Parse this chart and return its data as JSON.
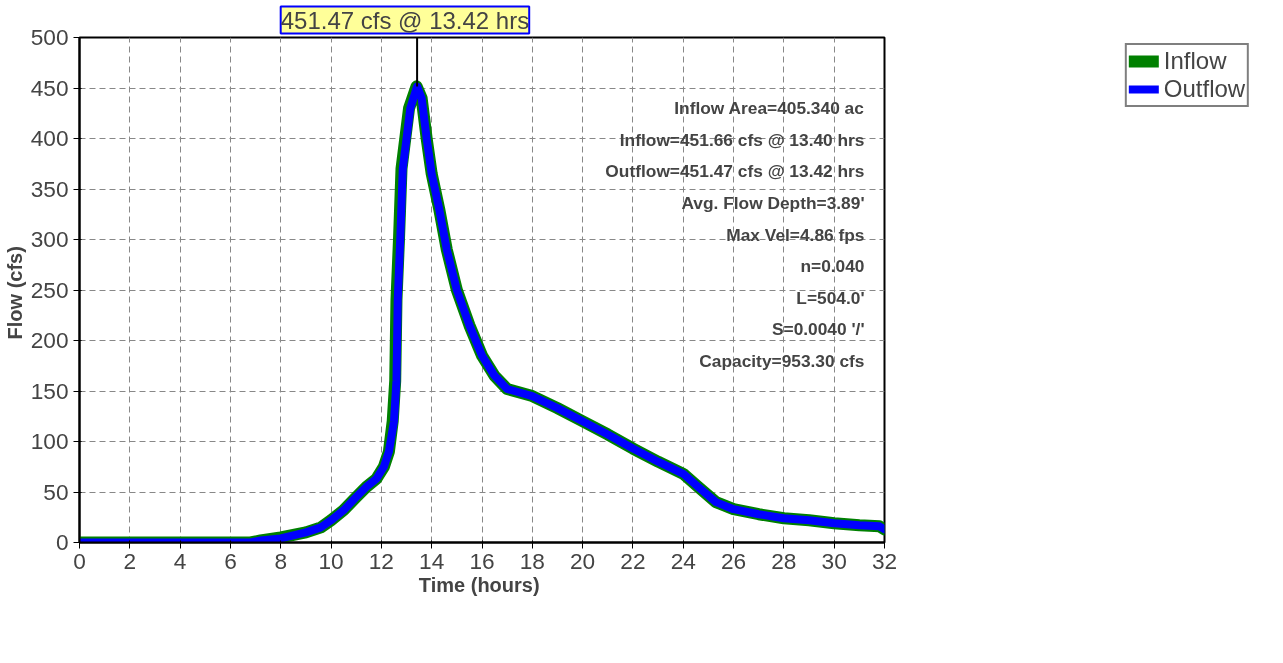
{
  "chart_data": {
    "type": "line",
    "xlabel": "Time  (hours)",
    "ylabel": "Flow  (cfs)",
    "xlim": [
      0,
      32
    ],
    "ylim": [
      0,
      500
    ],
    "xticks": [
      0,
      2,
      4,
      6,
      8,
      10,
      12,
      14,
      16,
      18,
      20,
      22,
      24,
      26,
      28,
      30,
      32
    ],
    "yticks": [
      0,
      50,
      100,
      150,
      200,
      250,
      300,
      350,
      400,
      450,
      500
    ],
    "grid": true,
    "legend": "right",
    "line_style": "solid",
    "marker": "none",
    "series": [
      {
        "name": "Inflow",
        "color": "#008000",
        "x": [
          0,
          6.8,
          7.2,
          8,
          9,
          9.6,
          10,
          10.5,
          11,
          11.4,
          11.8,
          12.1,
          12.3,
          12.45,
          12.55,
          12.6,
          12.7,
          12.8,
          12.95,
          13.1,
          13.4,
          13.6,
          13.8,
          14.0,
          14.3,
          14.6,
          15,
          15.5,
          16,
          16.5,
          17,
          18,
          19,
          20,
          21,
          22,
          23,
          24,
          24.6,
          25.3,
          26,
          27,
          28,
          29,
          30,
          31,
          31.8,
          32
        ],
        "values": [
          0,
          0,
          2,
          5,
          10,
          15,
          22,
          32,
          45,
          55,
          63,
          75,
          90,
          120,
          160,
          240,
          300,
          370,
          400,
          430,
          451.66,
          440,
          400,
          365,
          330,
          290,
          250,
          215,
          185,
          165,
          152,
          145,
          133,
          120,
          107,
          93,
          80,
          68,
          55,
          40,
          33,
          28,
          24,
          22,
          19,
          17,
          16,
          13
        ]
      },
      {
        "name": "Outflow",
        "color": "#0000ff",
        "x": [
          0,
          6.8,
          7.2,
          8,
          9,
          9.6,
          10,
          10.5,
          11,
          11.4,
          11.8,
          12.1,
          12.3,
          12.5,
          12.6,
          12.65,
          12.75,
          12.85,
          13.0,
          13.15,
          13.42,
          13.6,
          13.8,
          14.0,
          14.3,
          14.6,
          15,
          15.5,
          16,
          16.5,
          17,
          18,
          19,
          20,
          21,
          22,
          23,
          24,
          24.6,
          25.3,
          26,
          27,
          28,
          29,
          30,
          31,
          31.8,
          32
        ],
        "values": [
          0,
          0,
          2,
          4,
          10,
          15,
          22,
          32,
          45,
          55,
          63,
          75,
          90,
          120,
          160,
          240,
          300,
          370,
          400,
          430,
          451.47,
          440,
          400,
          365,
          330,
          290,
          250,
          215,
          185,
          165,
          152,
          145,
          133,
          120,
          107,
          93,
          80,
          68,
          55,
          40,
          33,
          28,
          24,
          22,
          19,
          17,
          16,
          13
        ]
      }
    ],
    "annotations": [
      {
        "text": "451.47 cfs @ 13.42 hrs",
        "x": 13.42,
        "y": 451.47
      },
      "Inflow Area=405.340 ac",
      "Inflow=451.66 cfs @ 13.40 hrs",
      "Outflow=451.47 cfs @ 13.42 hrs",
      "Avg. Flow Depth=3.89'",
      "Max Vel=4.86 fps",
      "n=0.040",
      "L=504.0'",
      "S=0.0040 '/'",
      "Capacity=953.30 cfs"
    ]
  }
}
